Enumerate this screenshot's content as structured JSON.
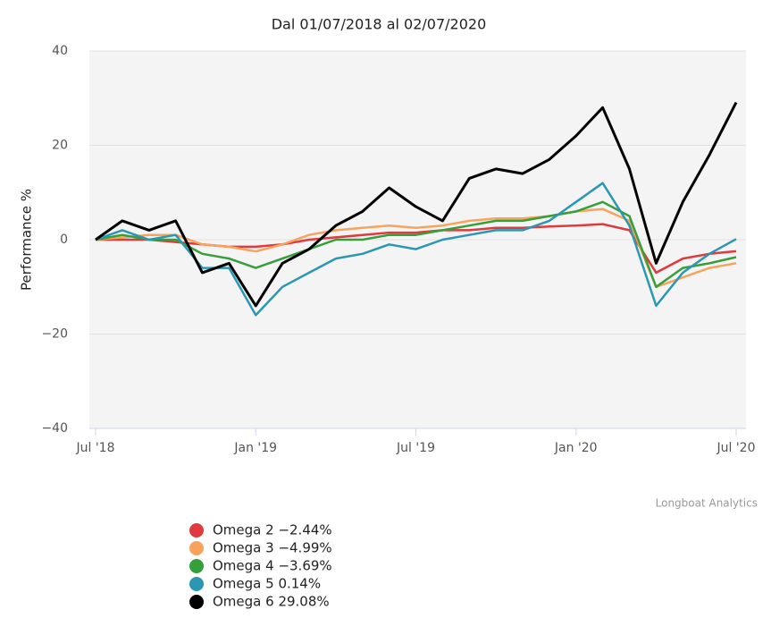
{
  "chart_data": {
    "type": "line",
    "title": "Dal 01/07/2018 al 02/07/2020",
    "y_label": "Performance %",
    "credits": "Longboat Analytics",
    "x": [
      "2018-07",
      "2018-08",
      "2018-09",
      "2018-10",
      "2018-11",
      "2018-12",
      "2019-01",
      "2019-02",
      "2019-03",
      "2019-04",
      "2019-05",
      "2019-06",
      "2019-07",
      "2019-08",
      "2019-09",
      "2019-10",
      "2019-11",
      "2019-12",
      "2020-01",
      "2020-02",
      "2020-03",
      "2020-04",
      "2020-05",
      "2020-06",
      "2020-07"
    ],
    "xticks": [
      {
        "value": "2018-07",
        "label": "Jul '18"
      },
      {
        "value": "2019-01",
        "label": "Jan '19"
      },
      {
        "value": "2019-07",
        "label": "Jul '19"
      },
      {
        "value": "2020-01",
        "label": "Jan '20"
      },
      {
        "value": "2020-07",
        "label": "Jul '20"
      }
    ],
    "ylim": [
      -40,
      40
    ],
    "yticks": [
      40,
      20,
      0,
      {
        "value": -20,
        "label": "−20"
      },
      {
        "value": -40,
        "label": "−40"
      }
    ],
    "grid": true,
    "legend": "bottom-left",
    "series": [
      {
        "name": "Omega 2 −2.44%",
        "color": "#e0393e",
        "values": [
          0,
          0,
          0,
          -0.5,
          -1,
          -1.5,
          -1.5,
          -1,
          0,
          0.5,
          1,
          1.5,
          1.5,
          2,
          2,
          2.5,
          2.5,
          2.8,
          3,
          3.3,
          2,
          -7,
          -4,
          -3,
          -2.44
        ]
      },
      {
        "name": "Omega 3 −4.99%",
        "color": "#f7a35c",
        "values": [
          0,
          0.5,
          1,
          1,
          -1,
          -1.5,
          -2.5,
          -1,
          1,
          2,
          2.5,
          3,
          2.5,
          3,
          4,
          4.5,
          4.5,
          5,
          6,
          6.5,
          4,
          -10,
          -8,
          -6,
          -4.99
        ]
      },
      {
        "name": "Omega 4 −3.69%",
        "color": "#35a03a",
        "values": [
          0,
          1,
          0,
          0,
          -3,
          -4,
          -6,
          -4,
          -2,
          0,
          0,
          1,
          1,
          2,
          3,
          4,
          4,
          5,
          6,
          8,
          5,
          -10,
          -6,
          -5,
          -3.69
        ]
      },
      {
        "name": "Omega 5 0.14%",
        "color": "#2b97b3",
        "values": [
          0,
          2,
          0,
          1,
          -6,
          -6,
          -16,
          -10,
          -7,
          -4,
          -3,
          -1,
          -2,
          0,
          1,
          2,
          2,
          4,
          8,
          12,
          3,
          -14,
          -7,
          -3,
          0.14
        ]
      },
      {
        "name": "Omega 6 29.08%",
        "color": "#000000",
        "values": [
          0,
          4,
          2,
          4,
          -7,
          -5,
          -14,
          -5,
          -2,
          3,
          6,
          11,
          7,
          4,
          13,
          15,
          14,
          17,
          22,
          28,
          15,
          -5,
          8,
          18,
          29.08
        ]
      }
    ]
  }
}
